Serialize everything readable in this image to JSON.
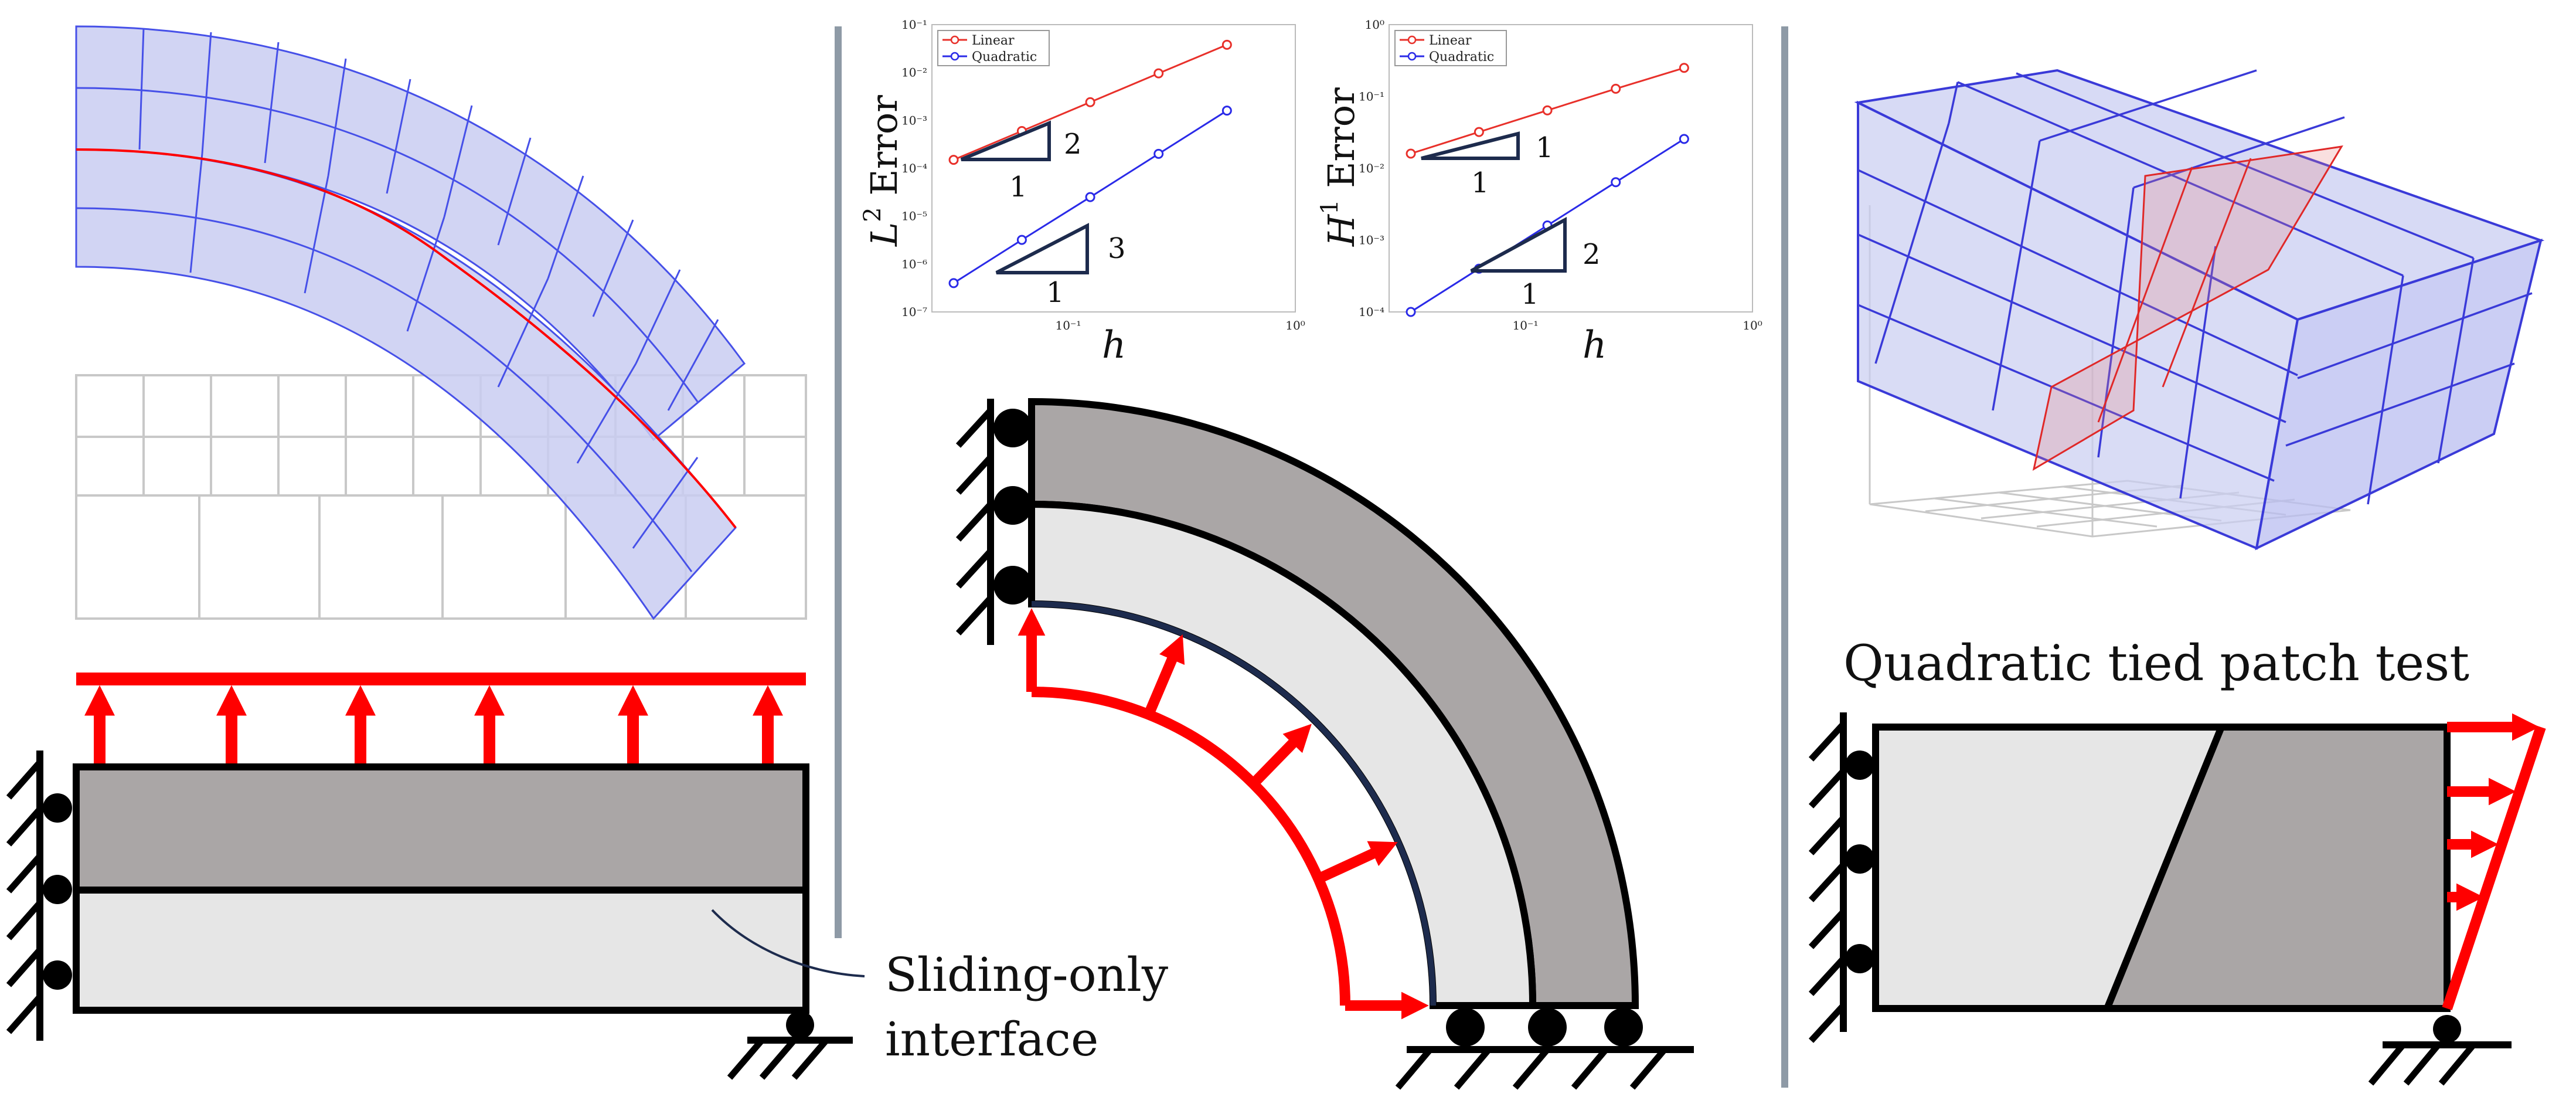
{
  "colors": {
    "mesh_fill": "#c9cdf1",
    "mesh_line": "#4650e8",
    "ref_mesh": "#c8c8c8",
    "interface": "#ff0000",
    "dark_block": "#aaa6a6",
    "light_block": "#e6e6e6",
    "load": "#ff0000",
    "divider": "#8e9aa6",
    "linear": "#e8302a",
    "quadratic": "#2a2ae8"
  },
  "left_panel": {
    "annotation_line1": "Sliding-only",
    "annotation_line2": "interface"
  },
  "right_panel": {
    "title": "Quadratic tied patch test"
  },
  "chart_data": [
    {
      "type": "line",
      "scale": "log-log",
      "ylabel_base": "L",
      "ylabel_sup": "2",
      "ylabel_rest": " Error",
      "xlabel": "h",
      "x_ticks": [
        "10⁻¹",
        "10⁰"
      ],
      "y_ticks": [
        "10⁻¹",
        "10⁻²",
        "10⁻³",
        "10⁻⁴",
        "10⁻⁵",
        "10⁻⁶",
        "10⁻⁷"
      ],
      "legend": [
        "Linear",
        "Quadratic"
      ],
      "series": [
        {
          "name": "Linear",
          "x": [
            0.0313,
            0.0625,
            0.125,
            0.25,
            0.5
          ],
          "y": [
            0.00015,
            0.0006,
            0.0024,
            0.0096,
            0.038
          ]
        },
        {
          "name": "Quadratic",
          "x": [
            0.0313,
            0.0625,
            0.125,
            0.25,
            0.5
          ],
          "y": [
            4e-07,
            3.2e-06,
            2.5e-05,
            0.0002,
            0.0016
          ]
        }
      ],
      "slopes": [
        {
          "run": "1",
          "rise": "2"
        },
        {
          "run": "1",
          "rise": "3"
        }
      ]
    },
    {
      "type": "line",
      "scale": "log-log",
      "ylabel_base": "H",
      "ylabel_sup": "1",
      "ylabel_rest": " Error",
      "xlabel": "h",
      "x_ticks": [
        "10⁻¹",
        "10⁰"
      ],
      "y_ticks": [
        "10⁰",
        "10⁻¹",
        "10⁻²",
        "10⁻³",
        "10⁻⁴"
      ],
      "legend": [
        "Linear",
        "Quadratic"
      ],
      "series": [
        {
          "name": "Linear",
          "x": [
            0.0313,
            0.0625,
            0.125,
            0.25,
            0.5
          ],
          "y": [
            0.016,
            0.032,
            0.064,
            0.128,
            0.25
          ]
        },
        {
          "name": "Quadratic",
          "x": [
            0.0313,
            0.0625,
            0.125,
            0.25,
            0.5
          ],
          "y": [
            0.0001,
            0.0004,
            0.0016,
            0.0064,
            0.0256
          ]
        }
      ],
      "slopes": [
        {
          "run": "1",
          "rise": "1"
        },
        {
          "run": "1",
          "rise": "2"
        }
      ]
    }
  ]
}
